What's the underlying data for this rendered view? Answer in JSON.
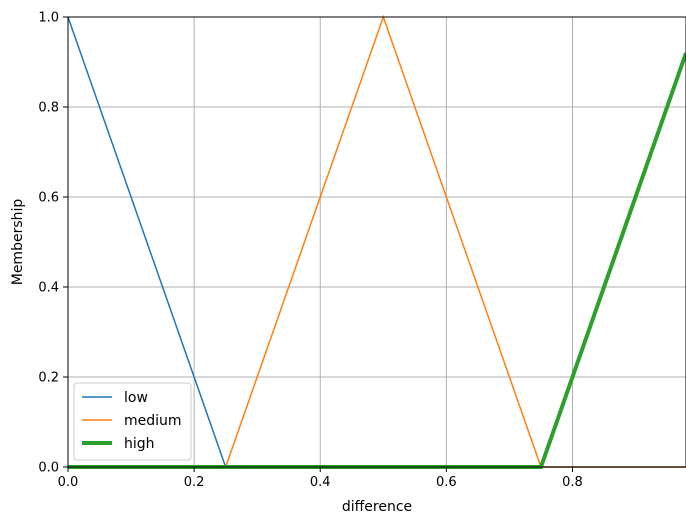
{
  "chart_data": {
    "type": "line",
    "title": "",
    "xlabel": "difference",
    "ylabel": "Membership",
    "xlim": [
      0,
      0.98
    ],
    "ylim": [
      0,
      1.0
    ],
    "xticks": [
      0.0,
      0.2,
      0.4,
      0.6,
      0.8
    ],
    "xtick_labels": [
      "0.0",
      "0.2",
      "0.4",
      "0.6",
      "0.8"
    ],
    "yticks": [
      0.0,
      0.2,
      0.4,
      0.6,
      0.8,
      1.0
    ],
    "ytick_labels": [
      "0.0",
      "0.2",
      "0.4",
      "0.6",
      "0.8",
      "1.0"
    ],
    "grid": true,
    "legend_position": "lower-left",
    "series": [
      {
        "name": "low",
        "color": "#1f77b4",
        "line_width": "thin",
        "x": [
          0.0,
          0.25,
          0.98
        ],
        "y": [
          1.0,
          0.0,
          0.0
        ]
      },
      {
        "name": "medium",
        "color": "#ff7f0e",
        "line_width": "thin",
        "x": [
          0.0,
          0.25,
          0.5,
          0.75,
          0.98
        ],
        "y": [
          0.0,
          0.0,
          1.0,
          0.0,
          0.0
        ]
      },
      {
        "name": "high",
        "color": "#2ca02c",
        "line_width": "bold",
        "x": [
          0.0,
          0.75,
          0.98
        ],
        "y": [
          0.0,
          0.0,
          0.92
        ]
      }
    ]
  }
}
